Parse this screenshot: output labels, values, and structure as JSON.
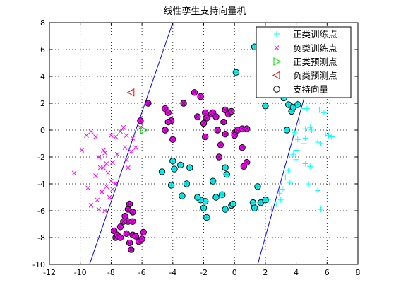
{
  "chart_data": {
    "type": "scatter",
    "title": "线性孪生支持向量机",
    "xlabel": "",
    "ylabel": "",
    "xlim": [
      -12,
      8
    ],
    "ylim": [
      -10,
      8
    ],
    "xticks": [
      "-12",
      "-10",
      "-8",
      "-6",
      "-4",
      "-2",
      "0",
      "2",
      "4",
      "6",
      "8"
    ],
    "yticks": [
      "-10",
      "-8",
      "-6",
      "-4",
      "-2",
      "0",
      "2",
      "4",
      "6",
      "8"
    ],
    "grid": true,
    "legend_position": "top-right",
    "series": [
      {
        "name": "正类训练点",
        "marker": "plus",
        "color": "#00ffff",
        "points": [
          [
            4.1,
            2.0
          ],
          [
            4.5,
            1.6
          ],
          [
            4.7,
            1.6
          ],
          [
            5.5,
            1.5
          ],
          [
            5.8,
            1.3
          ],
          [
            4.2,
            0.6
          ],
          [
            4.6,
            0.1
          ],
          [
            4.9,
            0.2
          ],
          [
            5.0,
            0.0
          ],
          [
            5.9,
            -0.3
          ],
          [
            6.1,
            -0.4
          ],
          [
            6.3,
            -0.5
          ],
          [
            4.1,
            -0.7
          ],
          [
            4.6,
            -0.6
          ],
          [
            4.5,
            -1.0
          ],
          [
            5.4,
            -0.9
          ],
          [
            5.6,
            -1.0
          ],
          [
            3.8,
            -1.8
          ],
          [
            4.0,
            -2.2
          ],
          [
            4.6,
            -2.5
          ],
          [
            4.9,
            -2.7
          ],
          [
            3.5,
            -3.0
          ],
          [
            3.3,
            -3.5
          ],
          [
            4.8,
            -4.0
          ],
          [
            5.4,
            -4.5
          ],
          [
            3.1,
            -4.4
          ],
          [
            2.9,
            -4.7
          ],
          [
            3.0,
            -5.2
          ],
          [
            2.7,
            -5.5
          ],
          [
            2.4,
            -5.9
          ],
          [
            5.6,
            -5.9
          ],
          [
            2.2,
            -5.2
          ],
          [
            3.6,
            -3.9
          ],
          [
            4.0,
            -1.5
          ],
          [
            3.9,
            -0.2
          ]
        ]
      },
      {
        "name": "负类训练点",
        "marker": "x",
        "color": "#ff00ff",
        "points": [
          [
            -10.4,
            -3.2
          ],
          [
            -9.9,
            -1.5
          ],
          [
            -9.6,
            -0.4
          ],
          [
            -9.3,
            -0.1
          ],
          [
            -9.0,
            -0.5
          ],
          [
            -8.5,
            -1.5
          ],
          [
            -8.4,
            -1.7
          ],
          [
            -8.0,
            -0.4
          ],
          [
            -7.7,
            -0.5
          ],
          [
            -7.4,
            -0.1
          ],
          [
            -7.2,
            0.2
          ],
          [
            -7.1,
            -1.3
          ],
          [
            -7.6,
            -1.8
          ],
          [
            -7.9,
            -2.4
          ],
          [
            -8.3,
            -2.5
          ],
          [
            -8.5,
            -2.8
          ],
          [
            -8.7,
            -2.8
          ],
          [
            -9.0,
            -3.4
          ],
          [
            -8.2,
            -3.2
          ],
          [
            -8.0,
            -3.8
          ],
          [
            -8.3,
            -4.2
          ],
          [
            -7.9,
            -4.4
          ],
          [
            -8.6,
            -4.6
          ],
          [
            -8.9,
            -5.2
          ],
          [
            -9.3,
            -5.6
          ],
          [
            -8.8,
            -5.9
          ],
          [
            -8.4,
            -6.0
          ],
          [
            -7.7,
            -4.0
          ],
          [
            -6.9,
            -2.8
          ],
          [
            -7.0,
            -2.2
          ],
          [
            -6.7,
            -1.6
          ],
          [
            -6.4,
            -1.3
          ],
          [
            -6.6,
            -0.6
          ],
          [
            -6.1,
            0.2
          ],
          [
            -7.0,
            -0.4
          ],
          [
            -8.8,
            -2.0
          ],
          [
            -9.5,
            -4.3
          ],
          [
            -8.1,
            -5.0
          ]
        ]
      },
      {
        "name": "正类预测点",
        "marker": "triangle-right",
        "color": "#00dd00",
        "points": [
          [
            -5.9,
            0.0
          ]
        ]
      },
      {
        "name": "负类预测点",
        "marker": "triangle-left",
        "color": "#ff0000",
        "points": [
          [
            -6.7,
            2.8
          ]
        ]
      }
    ],
    "support_vectors": {
      "name": "支持向量",
      "marker": "circle",
      "positive_fill": "#00ffff",
      "negative_fill": "#ff00ff",
      "positive": [
        [
          1.3,
          6.2
        ],
        [
          1.6,
          5.6
        ],
        [
          1.8,
          5.4
        ],
        [
          0.1,
          4.3
        ],
        [
          3.1,
          3.5
        ],
        [
          3.2,
          2.4
        ],
        [
          3.5,
          1.9
        ],
        [
          3.7,
          1.4
        ],
        [
          3.8,
          1.7
        ],
        [
          2.0,
          1.8
        ],
        [
          3.4,
          0.0
        ],
        [
          4.1,
          1.9
        ],
        [
          -1.8,
          -6.5
        ],
        [
          -1.9,
          -5.3
        ],
        [
          -2.2,
          -5.2
        ],
        [
          -2.0,
          -5.8
        ],
        [
          -1.2,
          -5.0
        ],
        [
          -0.8,
          -4.8
        ],
        [
          -0.2,
          -5.6
        ],
        [
          -0.6,
          -5.9
        ],
        [
          -0.5,
          -3.3
        ],
        [
          -1.4,
          -3.8
        ],
        [
          -2.4,
          -5.0
        ],
        [
          -3.4,
          -4.9
        ],
        [
          -3.1,
          -4.0
        ],
        [
          -4.1,
          -4.1
        ],
        [
          -3.9,
          -2.9
        ],
        [
          -4.0,
          -2.3
        ],
        [
          -4.7,
          -3.1
        ],
        [
          1.2,
          -5.4
        ],
        [
          1.3,
          -5.8
        ],
        [
          1.7,
          -5.4
        ],
        [
          2.0,
          -5.2
        ],
        [
          1.5,
          -4.2
        ],
        [
          -0.1,
          -5.5
        ],
        [
          -0.6,
          -2.8
        ],
        [
          -2.9,
          -2.8
        ],
        [
          -3.5,
          -2.6
        ]
      ],
      "negative": [
        [
          -6.1,
          0.7
        ],
        [
          -5.6,
          2.0
        ],
        [
          -4.5,
          1.6
        ],
        [
          -4.3,
          1.3
        ],
        [
          -4.1,
          0.7
        ],
        [
          -4.3,
          0.6
        ],
        [
          -4.5,
          0.0
        ],
        [
          -4.0,
          -0.7
        ],
        [
          -3.3,
          2.0
        ],
        [
          -2.6,
          2.8
        ],
        [
          -2.2,
          2.5
        ],
        [
          -1.8,
          0.9
        ],
        [
          -1.9,
          1.3
        ],
        [
          -2.4,
          1.0
        ],
        [
          -2.0,
          0.5
        ],
        [
          -1.9,
          -0.5
        ],
        [
          -1.5,
          1.2
        ],
        [
          -1.4,
          1.3
        ],
        [
          -1.2,
          1.0
        ],
        [
          -1.1,
          0.0
        ],
        [
          -0.6,
          1.5
        ],
        [
          -0.4,
          1.2
        ],
        [
          -0.2,
          1.4
        ],
        [
          -0.7,
          0.6
        ],
        [
          -0.6,
          -0.3
        ],
        [
          -0.9,
          -1.1
        ],
        [
          -1.0,
          -2.0
        ],
        [
          0.0,
          -0.2
        ],
        [
          0.2,
          0.0
        ],
        [
          0.5,
          0.1
        ],
        [
          0.8,
          0.1
        ],
        [
          0.0,
          -0.4
        ],
        [
          0.5,
          -1.3
        ],
        [
          0.8,
          -2.4
        ],
        [
          0.6,
          -2.7
        ],
        [
          -7.4,
          -7.2
        ],
        [
          -7.1,
          -6.4
        ],
        [
          -6.9,
          -5.9
        ],
        [
          -6.6,
          -6.1
        ],
        [
          -6.8,
          -5.5
        ],
        [
          -7.0,
          -7.7
        ],
        [
          -6.6,
          -7.8
        ],
        [
          -6.4,
          -7.9
        ],
        [
          -6.2,
          -8.3
        ],
        [
          -6.8,
          -8.4
        ],
        [
          -6.7,
          -8.9
        ],
        [
          -6.6,
          -6.8
        ],
        [
          -6.9,
          -6.8
        ],
        [
          -7.8,
          -7.5
        ],
        [
          -7.7,
          -8.0
        ],
        [
          -7.6,
          -7.8
        ],
        [
          -7.2,
          -6.8
        ],
        [
          -7.4,
          -8.0
        ],
        [
          -6.0,
          -8.1
        ],
        [
          -5.9,
          -7.6
        ]
      ]
    },
    "hyperplanes": [
      {
        "points": [
          [
            -9.4,
            -10
          ],
          [
            -4.0,
            8
          ]
        ],
        "color": "#0000ff"
      },
      {
        "points": [
          [
            1.5,
            -10
          ],
          [
            5.0,
            4.4
          ]
        ],
        "color": "#0000ff"
      }
    ]
  }
}
